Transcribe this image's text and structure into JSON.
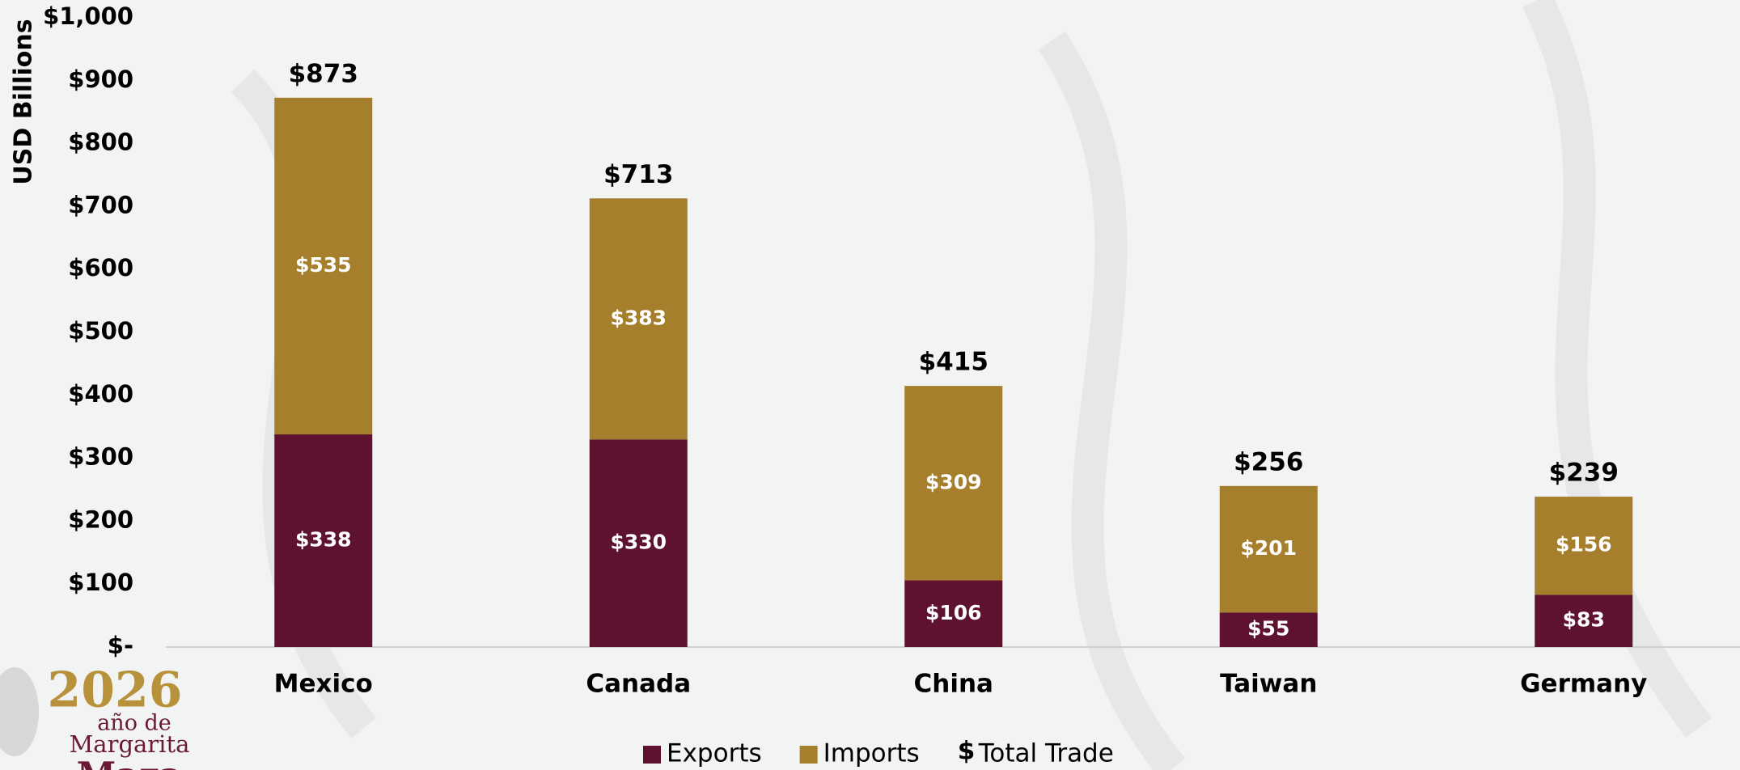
{
  "chart_data": {
    "type": "stacked_bar",
    "y_label": "USD Billions",
    "categories": [
      "Mexico",
      "Canada",
      "China",
      "Taiwan",
      "Germany"
    ],
    "series": [
      {
        "name": "Exports",
        "color": "#5e1230",
        "values": [
          338,
          330,
          106,
          55,
          83
        ],
        "value_labels": [
          "$338",
          "$330",
          "$106",
          "$55",
          "$83"
        ]
      },
      {
        "name": "Imports",
        "color": "#a57f2c",
        "values": [
          535,
          383,
          309,
          201,
          156
        ],
        "value_labels": [
          "$535",
          "$383",
          "$309",
          "$201",
          "$156"
        ]
      }
    ],
    "totals": {
      "name": "Total Trade",
      "marker": "$",
      "values": [
        873,
        713,
        415,
        256,
        239
      ],
      "value_labels": [
        "$873",
        "$713",
        "$415",
        "$256",
        "$239"
      ]
    },
    "ylim": [
      0,
      1000
    ],
    "yticks": [
      {
        "value": 0,
        "label": "$-"
      },
      {
        "value": 100,
        "label": "$100"
      },
      {
        "value": 200,
        "label": "$200"
      },
      {
        "value": 300,
        "label": "$300"
      },
      {
        "value": 400,
        "label": "$400"
      },
      {
        "value": 500,
        "label": "$500"
      },
      {
        "value": 600,
        "label": "$600"
      },
      {
        "value": 700,
        "label": "$700"
      },
      {
        "value": 800,
        "label": "$800"
      },
      {
        "value": 900,
        "label": "$900"
      },
      {
        "value": 1000,
        "label": "$1,000"
      }
    ],
    "legend": "bottom"
  },
  "logo": {
    "year": "2026",
    "text": "año de",
    "name": "Margarita",
    "surname": "Maza"
  }
}
